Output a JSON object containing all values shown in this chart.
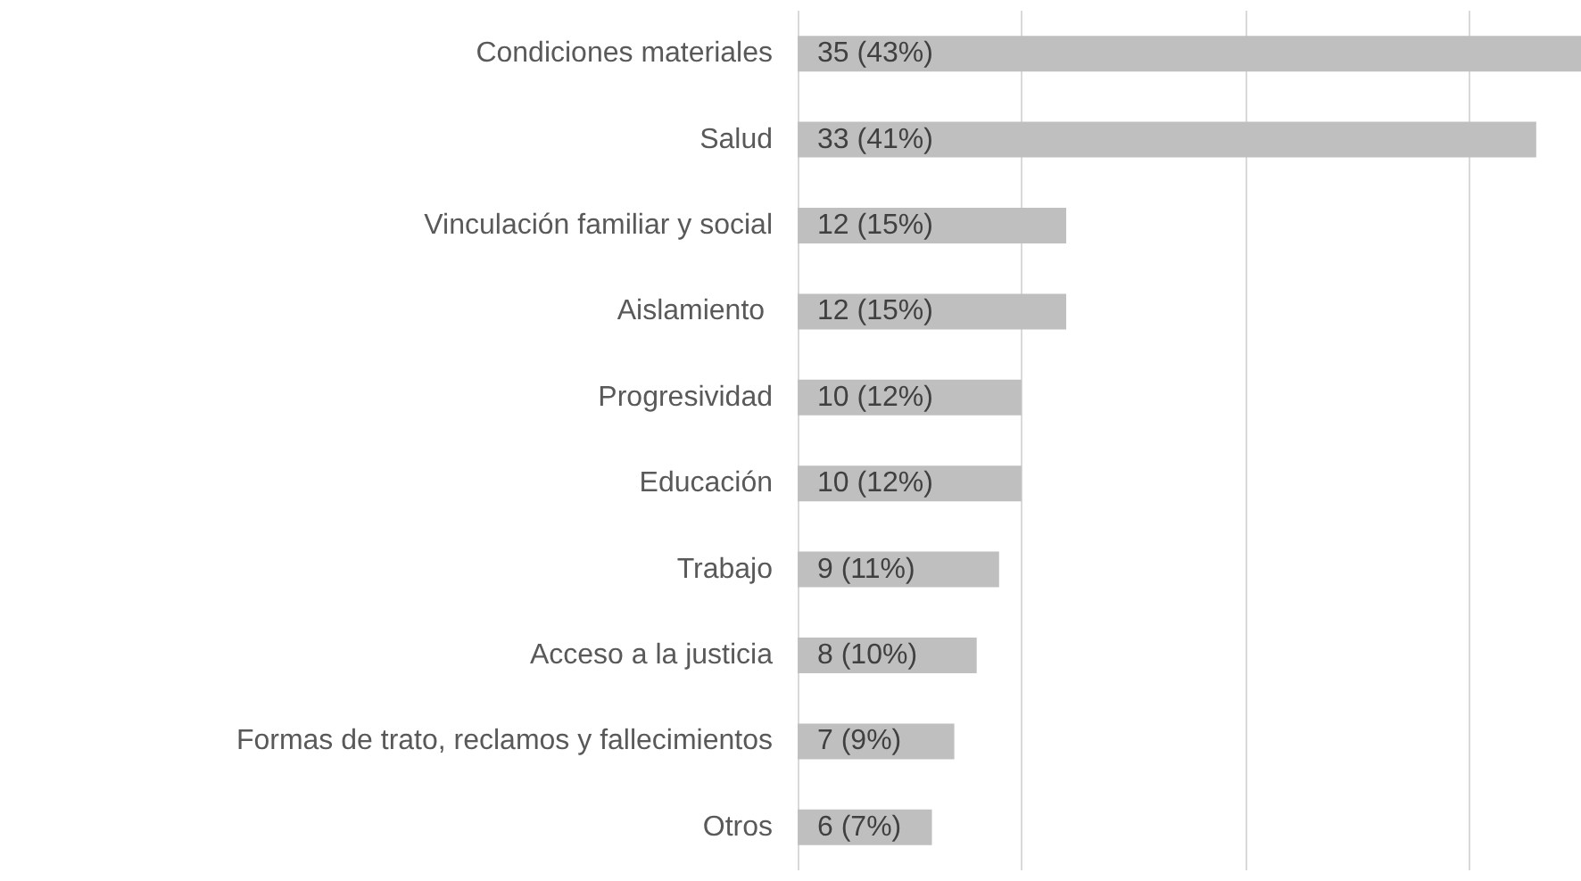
{
  "chart_data": {
    "type": "bar",
    "orientation": "horizontal",
    "categories": [
      "Condiciones materiales",
      "Salud",
      "Vinculación familiar y social",
      "Aislamiento ",
      "Progresividad",
      "Educación",
      "Trabajo",
      "Acceso a la justicia",
      "Formas de trato, reclamos y fallecimientos",
      "Otros"
    ],
    "values": [
      35,
      33,
      12,
      12,
      10,
      10,
      9,
      8,
      7,
      6
    ],
    "value_labels": [
      "35 (43%)",
      "33 (41%)",
      "12 (15%)",
      "12 (15%)",
      "10 (12%)",
      "10 (12%)",
      "9 (11%)",
      "8 (10%)",
      "7 (9%)",
      "6 (7%)"
    ],
    "color": "#bfbfbf",
    "xlim": [
      0,
      35
    ],
    "xticks": [
      {
        "value": 0,
        "label": null
      },
      {
        "value": 10,
        "label": null
      },
      {
        "value": 20,
        "label": null
      },
      {
        "value": 30,
        "label": null
      }
    ],
    "grid": "x",
    "tick_labels": "y"
  }
}
